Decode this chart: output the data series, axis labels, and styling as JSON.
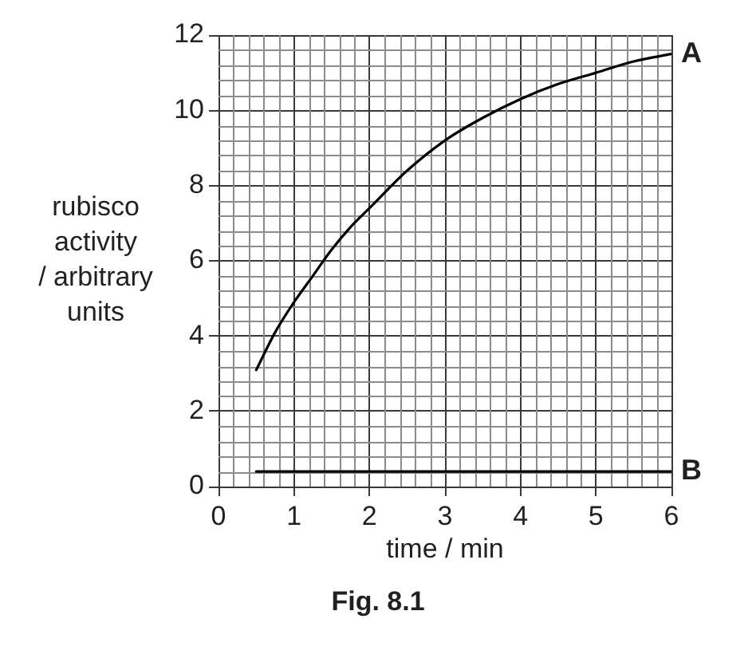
{
  "chart_data": {
    "type": "line",
    "xlabel": "time / min",
    "ylabel": "rubisco activity / arbitrary units",
    "annotations": [
      "Fig. 8.1"
    ],
    "xlim": [
      0,
      6
    ],
    "ylim": [
      0,
      12
    ],
    "xticks": [
      0,
      1,
      2,
      3,
      4,
      5,
      6
    ],
    "yticks": [
      0,
      2,
      4,
      6,
      8,
      10,
      12
    ],
    "grid": true,
    "legend": false,
    "marker": "none",
    "line_style": "solid",
    "series": [
      {
        "name": "A",
        "color": "#000000",
        "x": [
          0.5,
          0.75,
          1,
          1.25,
          1.5,
          1.75,
          2,
          2.5,
          3,
          3.5,
          4,
          4.5,
          5,
          5.5,
          6
        ],
        "values": [
          3.1,
          4.1,
          4.9,
          5.6,
          6.3,
          6.9,
          7.4,
          8.4,
          9.2,
          9.8,
          10.3,
          10.7,
          11.0,
          11.3,
          11.5
        ]
      },
      {
        "name": "B",
        "color": "#000000",
        "x": [
          0.5,
          6
        ],
        "values": [
          0.4,
          0.4
        ]
      }
    ]
  }
}
